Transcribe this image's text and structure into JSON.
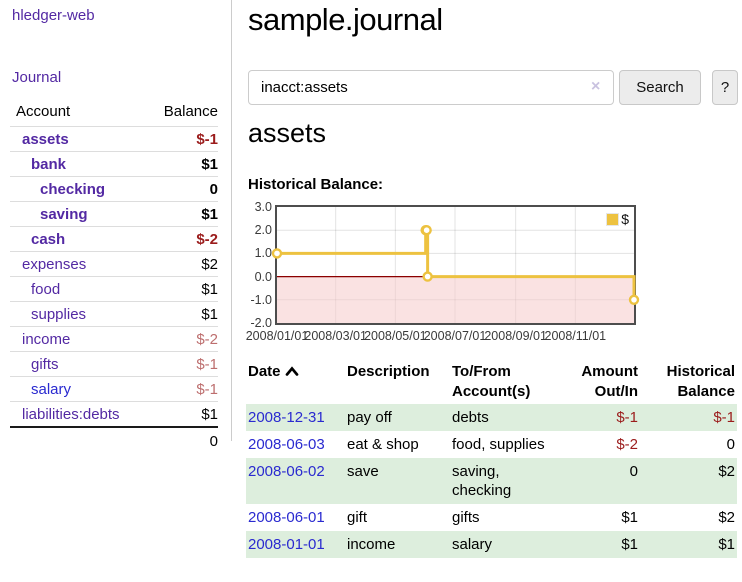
{
  "app": {
    "title": "hledger-web"
  },
  "sidebar": {
    "nav_journal": "Journal",
    "accounts": {
      "header_account": "Account",
      "header_balance": "Balance",
      "rows": [
        {
          "name": "assets",
          "indent": 1,
          "bold": true,
          "link": "purple",
          "balance": "$-1"
        },
        {
          "name": "bank",
          "indent": 2,
          "bold": true,
          "link": "purple",
          "balance": "$1"
        },
        {
          "name": "checking",
          "indent": 3,
          "bold": true,
          "link": "purple",
          "balance": "0"
        },
        {
          "name": "saving",
          "indent": 3,
          "bold": true,
          "link": "purple",
          "balance": "$1"
        },
        {
          "name": "cash",
          "indent": 2,
          "bold": true,
          "link": "purple",
          "balance": "$-2"
        },
        {
          "name": "expenses",
          "indent": 1,
          "bold": false,
          "link": "purple",
          "balance": "$2"
        },
        {
          "name": "food",
          "indent": 2,
          "bold": false,
          "link": "purple",
          "balance": "$1"
        },
        {
          "name": "supplies",
          "indent": 2,
          "bold": false,
          "link": "purple",
          "balance": "$1"
        },
        {
          "name": "income",
          "indent": 1,
          "bold": false,
          "link": "purple",
          "balance": "$-2"
        },
        {
          "name": "gifts",
          "indent": 2,
          "bold": false,
          "link": "purple",
          "balance": "$-1"
        },
        {
          "name": "salary",
          "indent": 2,
          "bold": false,
          "link": "blue",
          "balance": "$-1"
        },
        {
          "name": "liabilities:debts",
          "indent": 1,
          "bold": false,
          "link": "purple",
          "balance": "$1"
        }
      ],
      "total_balance": "0"
    }
  },
  "main": {
    "title": "sample.journal",
    "search": {
      "value": "inacct:assets",
      "clear_label": "×",
      "button_label": "Search",
      "help_label": "?"
    },
    "account_heading": "assets",
    "chart_heading": "Historical Balance:"
  },
  "chart_data": {
    "type": "line",
    "step": true,
    "title": "Historical Balance:",
    "x_axis": {
      "kind": "date",
      "min": "2008-01-01",
      "max": "2008-12-31",
      "span_days": 365,
      "tick_labels": [
        "2008/01/01",
        "2008/03/01",
        "2008/05/01",
        "2008/07/01",
        "2008/09/01",
        "2008/11/01"
      ],
      "tick_days": [
        0,
        60,
        121,
        182,
        244,
        305
      ]
    },
    "y_axis": {
      "min": -2,
      "max": 3,
      "tick_labels": [
        "3.0",
        "2.0",
        "1.0",
        "0.0",
        "-1.0",
        "-2.0"
      ],
      "tick_values": [
        3,
        2,
        1,
        0,
        -1,
        -2
      ]
    },
    "series": [
      {
        "name": "$",
        "color": "#edc240",
        "marker_fill": "#ffffff",
        "points": [
          {
            "date": "2008-01-01",
            "day": 0,
            "value": 1
          },
          {
            "date": "2008-06-01",
            "day": 152,
            "value": 2
          },
          {
            "date": "2008-06-02",
            "day": 153,
            "value": 2
          },
          {
            "date": "2008-06-03",
            "day": 154,
            "value": 0
          },
          {
            "date": "2008-12-31",
            "day": 365,
            "value": -1
          }
        ]
      }
    ],
    "zero_line_color": "#8b0000",
    "below_zero_fill": "#f6caca",
    "legend": {
      "label": "$",
      "position": "top-right"
    }
  },
  "register": {
    "columns": [
      {
        "label": "Date",
        "align": "left",
        "sorted": "ascending"
      },
      {
        "label": "Description",
        "align": "left"
      },
      {
        "label": "To/From Account(s)",
        "align": "left"
      },
      {
        "label": "Amount Out/In",
        "align": "right"
      },
      {
        "label": "Historical Balance",
        "align": "right"
      }
    ],
    "rows": [
      {
        "date": "2008-12-31",
        "description": "pay off",
        "accounts": "debts",
        "amount": "$-1",
        "balance": "$-1"
      },
      {
        "date": "2008-06-03",
        "description": "eat & shop",
        "accounts": "food, supplies",
        "amount": "$-2",
        "balance": "0"
      },
      {
        "date": "2008-06-02",
        "description": "save",
        "accounts": "saving, checking",
        "amount": "0",
        "balance": "$2"
      },
      {
        "date": "2008-06-01",
        "description": "gift",
        "accounts": "gifts",
        "amount": "$1",
        "balance": "$2"
      },
      {
        "date": "2008-01-01",
        "description": "income",
        "accounts": "salary",
        "amount": "$1",
        "balance": "$1"
      }
    ]
  },
  "colors": {
    "link_purple": "#5329a3",
    "link_blue": "#2a2ad0",
    "negative_strong": "#9b1c1c",
    "negative_muted": "#bd6e6e",
    "row_stripe_green": "#ddeedd",
    "chart_line_gold": "#edc240",
    "chart_zero_line": "#8b0000",
    "chart_negative_region": "#f6caca"
  }
}
